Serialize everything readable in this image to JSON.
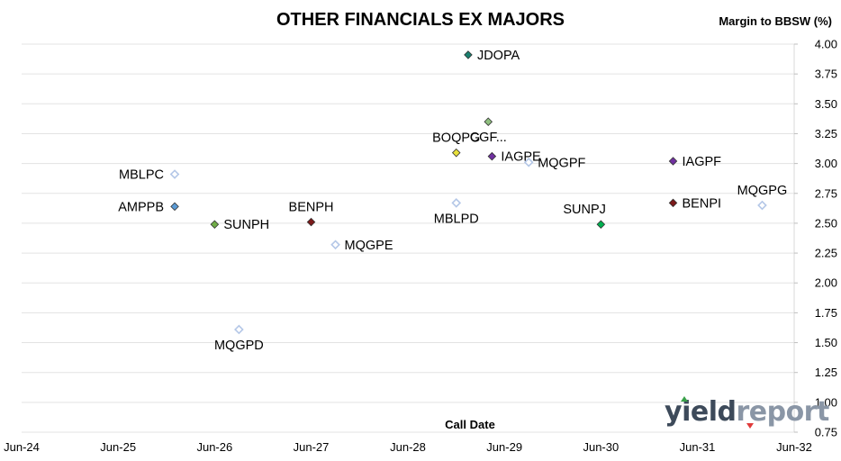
{
  "chart_data": {
    "type": "scatter",
    "title": "OTHER FINANCIALS EX MAJORS",
    "ylabel": "Margin to BBSW (%)",
    "xlabel": "Call Date",
    "ylim": [
      0.75,
      4.0
    ],
    "yticks": [
      "0.75",
      "1.00",
      "1.25",
      "1.50",
      "1.75",
      "2.00",
      "2.25",
      "2.50",
      "2.75",
      "3.00",
      "3.25",
      "3.50",
      "3.75",
      "4.00"
    ],
    "ytick_values": [
      0.75,
      1.0,
      1.25,
      1.5,
      1.75,
      2.0,
      2.25,
      2.5,
      2.75,
      3.0,
      3.25,
      3.5,
      3.75,
      4.0
    ],
    "xlim": [
      "2024-06-01",
      "2032-06-01"
    ],
    "xticks": [
      "Jun-24",
      "Jun-25",
      "Jun-26",
      "Jun-27",
      "Jun-28",
      "Jun-29",
      "Jun-30",
      "Jun-31",
      "Jun-32"
    ],
    "xtick_values": [
      "2024-06-01",
      "2025-06-01",
      "2026-06-01",
      "2027-06-01",
      "2028-06-01",
      "2029-06-01",
      "2030-06-01",
      "2031-06-01",
      "2032-06-01"
    ],
    "grid": "horizontal",
    "points": [
      {
        "label": "JDOPA",
        "x": "2029-01-15",
        "y": 3.91,
        "color": "#1a7f6e",
        "filled": true,
        "label_pos": "right"
      },
      {
        "label": "CGF...",
        "x": "2029-04-01",
        "y": 3.35,
        "color": "#8fbf7f",
        "filled": true,
        "label_pos": "below"
      },
      {
        "label": "BOQPG",
        "x": "2028-12-01",
        "y": 3.09,
        "color": "#e8e03a",
        "filled": true,
        "label_pos": "above"
      },
      {
        "label": "IAGPE",
        "x": "2029-04-15",
        "y": 3.06,
        "color": "#7030a0",
        "filled": true,
        "label_pos": "right"
      },
      {
        "label": "MQGPF",
        "x": "2029-09-01",
        "y": 3.01,
        "color": "#b4c7e7",
        "filled": false,
        "label_pos": "right"
      },
      {
        "label": "IAGPF",
        "x": "2031-03-01",
        "y": 3.02,
        "color": "#7030a0",
        "filled": true,
        "label_pos": "right"
      },
      {
        "label": "MBLPC",
        "x": "2026-01-01",
        "y": 2.91,
        "color": "#b4c7e7",
        "filled": false,
        "label_pos": "left"
      },
      {
        "label": "AMPPB",
        "x": "2026-01-01",
        "y": 2.64,
        "color": "#5b9bd5",
        "filled": true,
        "label_pos": "left"
      },
      {
        "label": "SUNPH",
        "x": "2026-06-01",
        "y": 2.49,
        "color": "#70ad47",
        "filled": true,
        "label_pos": "right"
      },
      {
        "label": "BENPH",
        "x": "2027-06-01",
        "y": 2.51,
        "color": "#7b1a1a",
        "filled": true,
        "label_pos": "above"
      },
      {
        "label": "MQGPE",
        "x": "2027-09-01",
        "y": 2.32,
        "color": "#b4c7e7",
        "filled": false,
        "label_pos": "right"
      },
      {
        "label": "MBLPD",
        "x": "2028-12-01",
        "y": 2.67,
        "color": "#b4c7e7",
        "filled": false,
        "label_pos": "below"
      },
      {
        "label": "SUNPJ",
        "x": "2030-06-01",
        "y": 2.49,
        "color": "#00b050",
        "filled": true,
        "label_pos": "above-left"
      },
      {
        "label": "BENPI",
        "x": "2031-03-01",
        "y": 2.67,
        "color": "#7b1a1a",
        "filled": true,
        "label_pos": "right"
      },
      {
        "label": "MQGPG",
        "x": "2032-02-01",
        "y": 2.65,
        "color": "#b4c7e7",
        "filled": false,
        "label_pos": "above"
      },
      {
        "label": "MQGPD",
        "x": "2026-09-01",
        "y": 1.61,
        "color": "#b4c7e7",
        "filled": false,
        "label_pos": "below"
      }
    ]
  },
  "branding": {
    "logo_text": "yieldreport",
    "logo_part1": "y",
    "logo_part2": "ield",
    "logo_part3": "report",
    "accent_up": "#3aa14a",
    "accent_down": "#e03a3a"
  }
}
